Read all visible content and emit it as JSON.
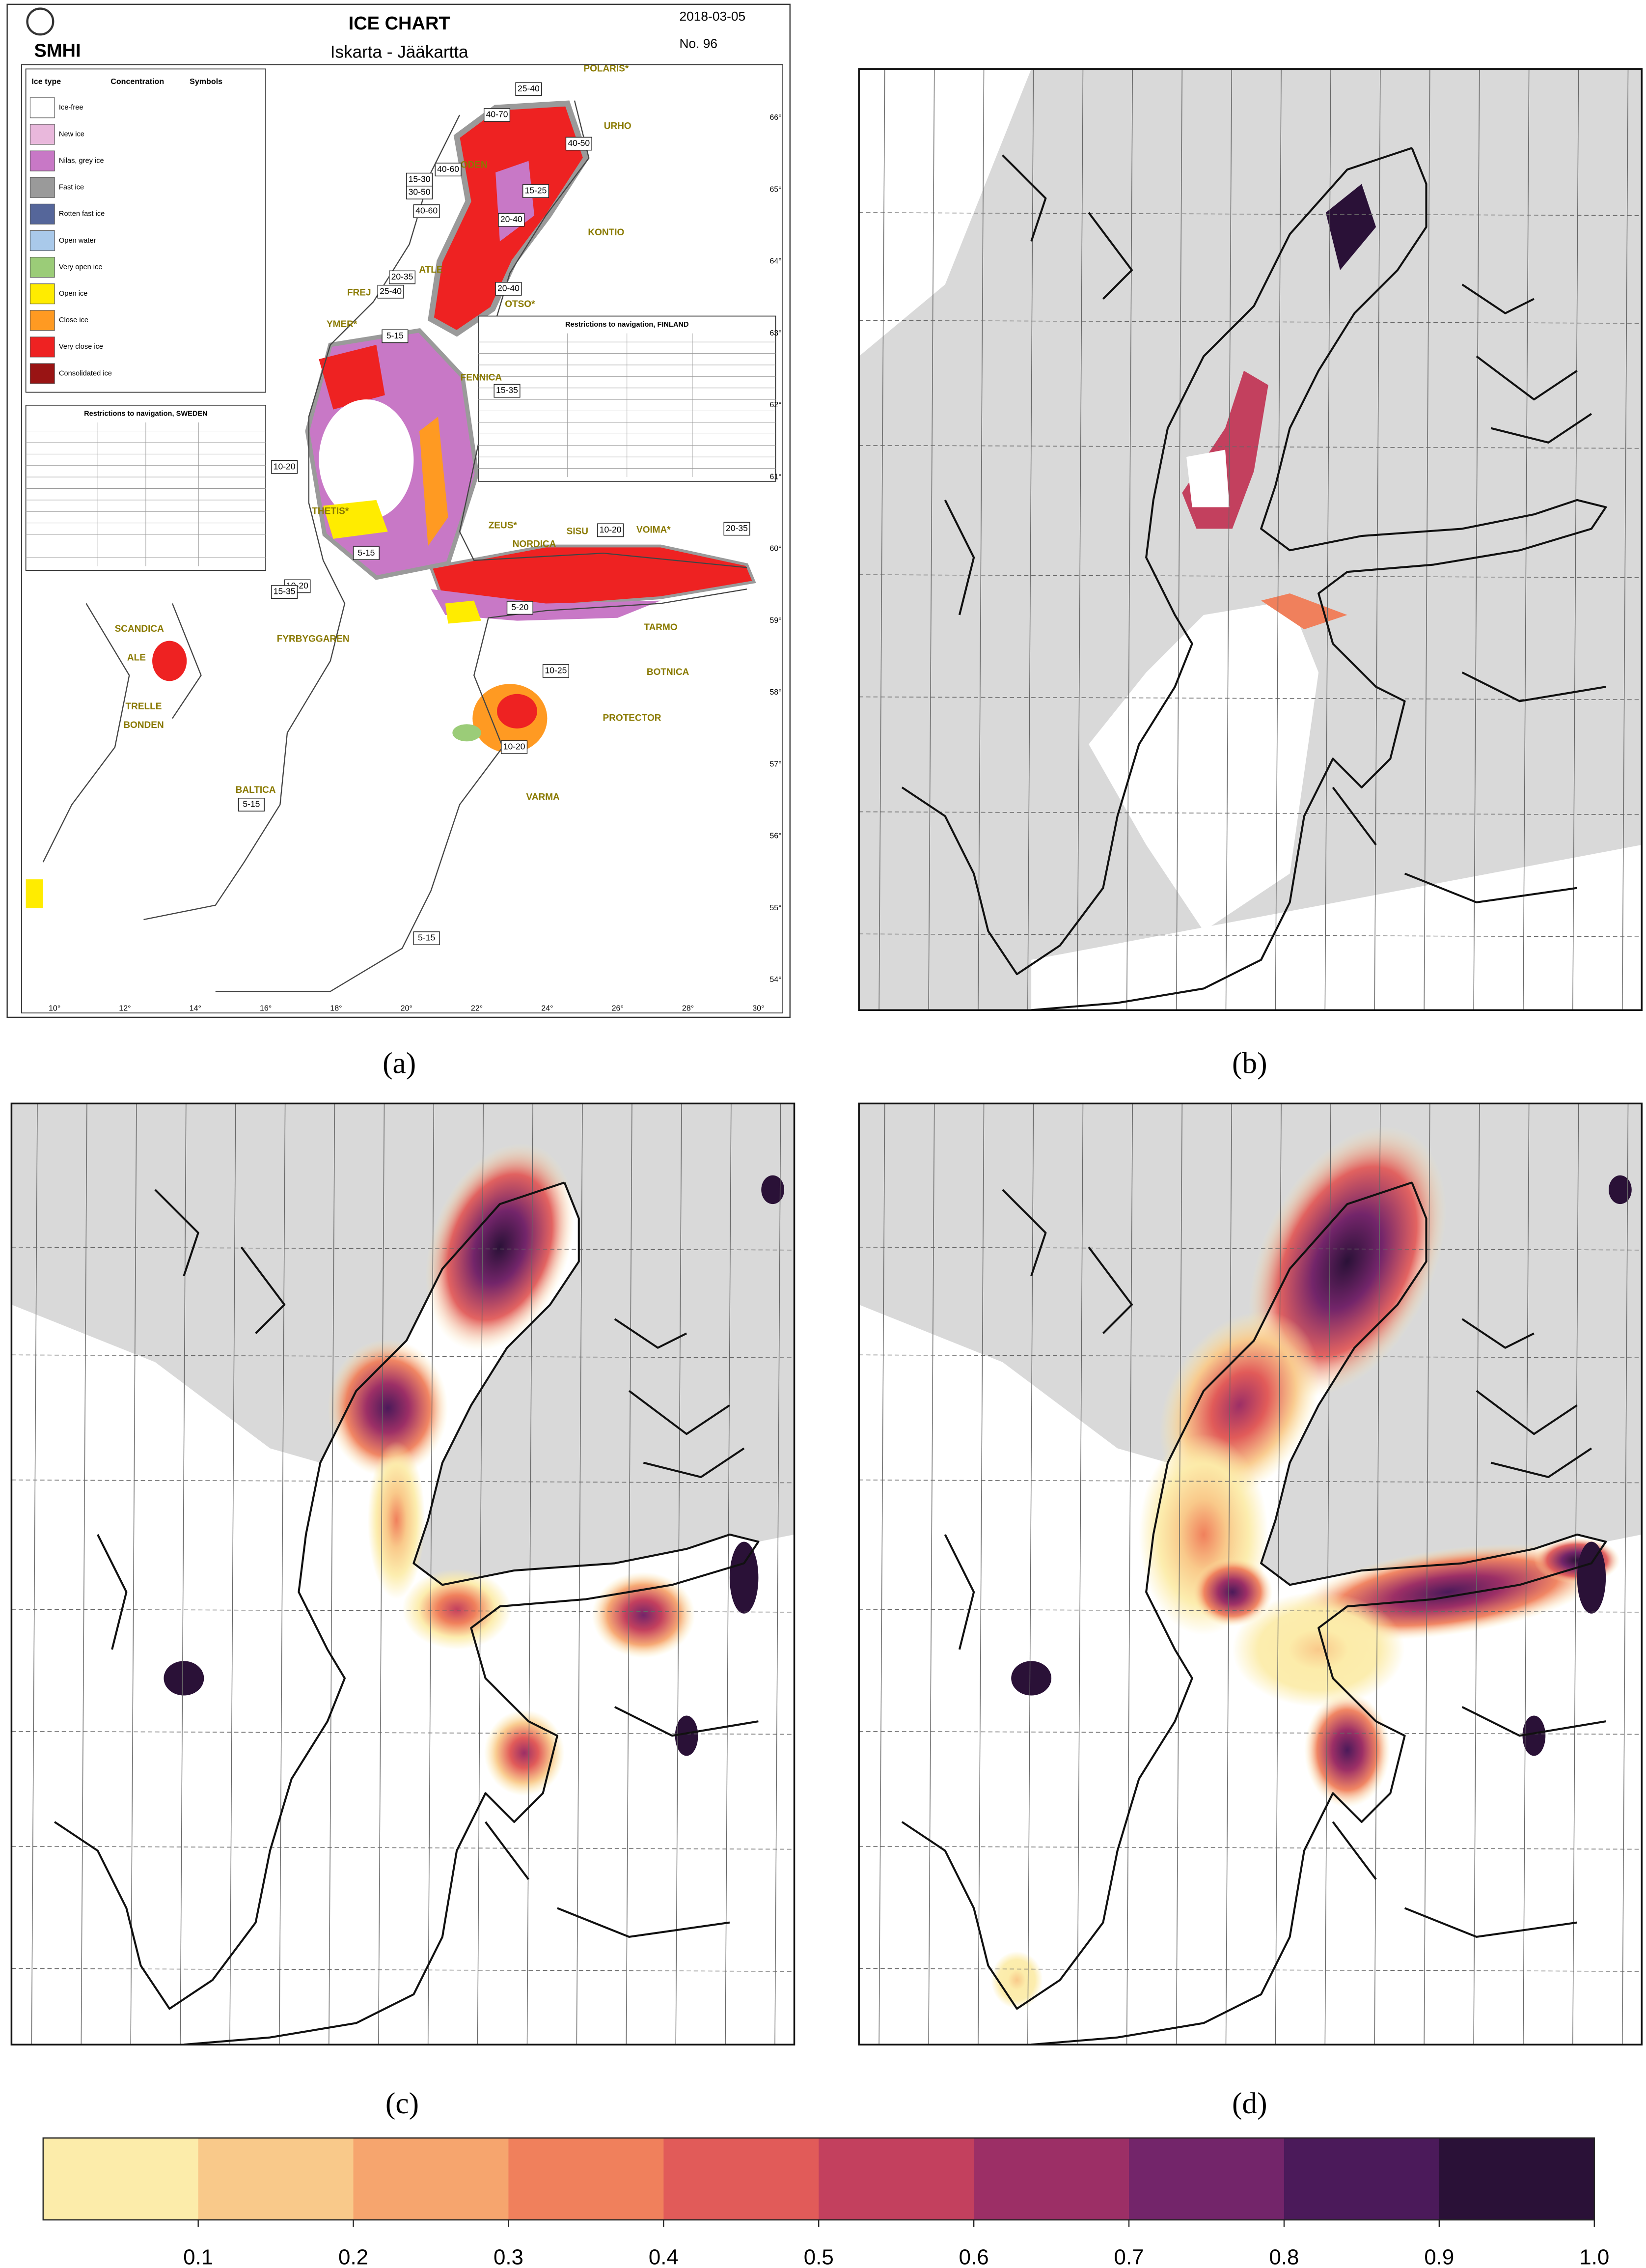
{
  "panels": {
    "labels": [
      "(a)",
      "(b)",
      "(c)",
      "(d)"
    ]
  },
  "ice_chart": {
    "title": "ICE CHART",
    "subtitle": "Iskarta - Jääkartta",
    "date": "2018-03-05",
    "number": "No. 96",
    "logo": "SMHI",
    "legend_header": [
      "Ice type",
      "Concentration",
      "Symbols"
    ],
    "legend": [
      {
        "name": "Ice-free",
        "color": "#ffffff"
      },
      {
        "name": "New ice",
        "color": "#e9b8dc"
      },
      {
        "name": "Nilas, grey ice",
        "color": "#c878c6"
      },
      {
        "name": "Fast ice",
        "color": "#9a9a9a"
      },
      {
        "name": "Rotten fast ice",
        "color": "#55669a"
      },
      {
        "name": "Open water",
        "color": "#a9c9ea"
      },
      {
        "name": "Very open ice",
        "color": "#9bcc78"
      },
      {
        "name": "Open ice",
        "color": "#ffec00"
      },
      {
        "name": "Close ice",
        "color": "#ff9a22"
      },
      {
        "name": "Very close ice",
        "color": "#ee2222"
      },
      {
        "name": "Consolidated ice",
        "color": "#991414"
      }
    ],
    "ship_names": [
      "POLARIS*",
      "URHO",
      "ODEN",
      "KONTIO",
      "ATLE",
      "FREJ",
      "OTSO*",
      "YMER*",
      "FENNICA",
      "THETIS*",
      "ZEUS*",
      "NORDICA",
      "SISU",
      "VOIMA*",
      "SCANDICA",
      "FYRBYGGAREN",
      "TARMO",
      "BOTNICA",
      "ALE",
      "TRELLE",
      "BONDEN",
      "PROTECTOR",
      "VARMA",
      "BALTICA"
    ],
    "concentration_boxes": [
      "40-70",
      "25-40",
      "40-50",
      "40-60",
      "15-30",
      "30-50",
      "15-25",
      "20-40",
      "40-60",
      "20-35",
      "25-40",
      "20-40",
      "5-15",
      "15-35",
      "10-20",
      "5-15",
      "10-20",
      "5-20",
      "10-25",
      "10-20",
      "5-15",
      "5-15",
      "15-35",
      "20-35",
      "10-20"
    ],
    "tables": [
      "Restrictions to navigation, SWEDEN",
      "Restrictions to navigation, FINLAND"
    ],
    "lon_labels": [
      "10°",
      "12°",
      "14°",
      "16°",
      "18°",
      "20°",
      "22°",
      "24°",
      "26°",
      "28°",
      "30°"
    ],
    "lat_labels": [
      "66°",
      "65°",
      "64°",
      "63°",
      "62°",
      "61°",
      "60°",
      "59°",
      "58°",
      "57°",
      "56°",
      "55°",
      "54°"
    ]
  },
  "colorbar": {
    "lim": [
      0,
      1
    ],
    "colors": [
      "#fcecaa",
      "#f9c98a",
      "#f6a56e",
      "#f0805c",
      "#e15b59",
      "#c3405e",
      "#9c2f66",
      "#73256a",
      "#4b1a5a",
      "#2a1137"
    ],
    "ticks": [
      0.1,
      0.2,
      0.3,
      0.4,
      0.5,
      0.6,
      0.7,
      0.8,
      0.9,
      {
        "value": 1,
        "label": "1.0"
      }
    ]
  }
}
